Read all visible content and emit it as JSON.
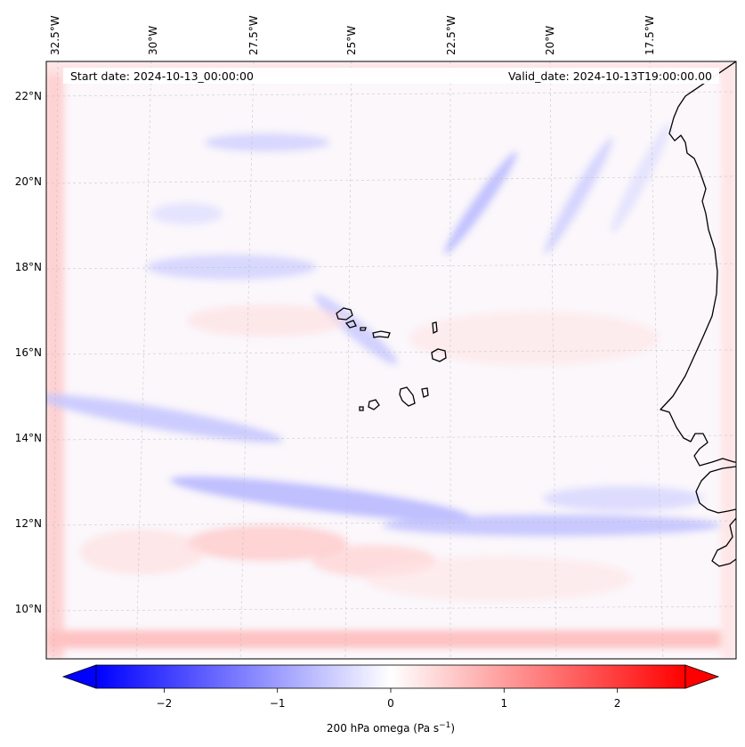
{
  "info": {
    "start_date": "Start date: 2024-10-13_00:00:00",
    "valid_date": "Valid_date: 2024-10-13T19:00:00.00"
  },
  "map": {
    "region": "Eastern tropical Atlantic (Cabo Verde / West Africa)",
    "lon_labels": [
      "32.5°W",
      "30°W",
      "27.5°W",
      "25°W",
      "22.5°W",
      "20°W",
      "17.5°W"
    ],
    "lat_labels": [
      "22°N",
      "20°N",
      "18°N",
      "16°N",
      "14°N",
      "12°N",
      "10°N"
    ],
    "gridlines": "dashed",
    "coastlines": true
  },
  "colorbar": {
    "ticks": [
      "−2",
      "−1",
      "0",
      "1",
      "2"
    ],
    "tick_values": [
      -2,
      -1,
      0,
      1,
      2
    ],
    "range": [
      -2.6,
      2.6
    ],
    "extend": "both",
    "colormap": "bwr",
    "label_main": "200 hPa omega (Pa s",
    "label_exp": "−1",
    "label_close": ")"
  },
  "colors": {
    "negative": "#0000ff",
    "neutral": "#ffffff",
    "positive": "#ff0000",
    "coastline": "#000000"
  }
}
